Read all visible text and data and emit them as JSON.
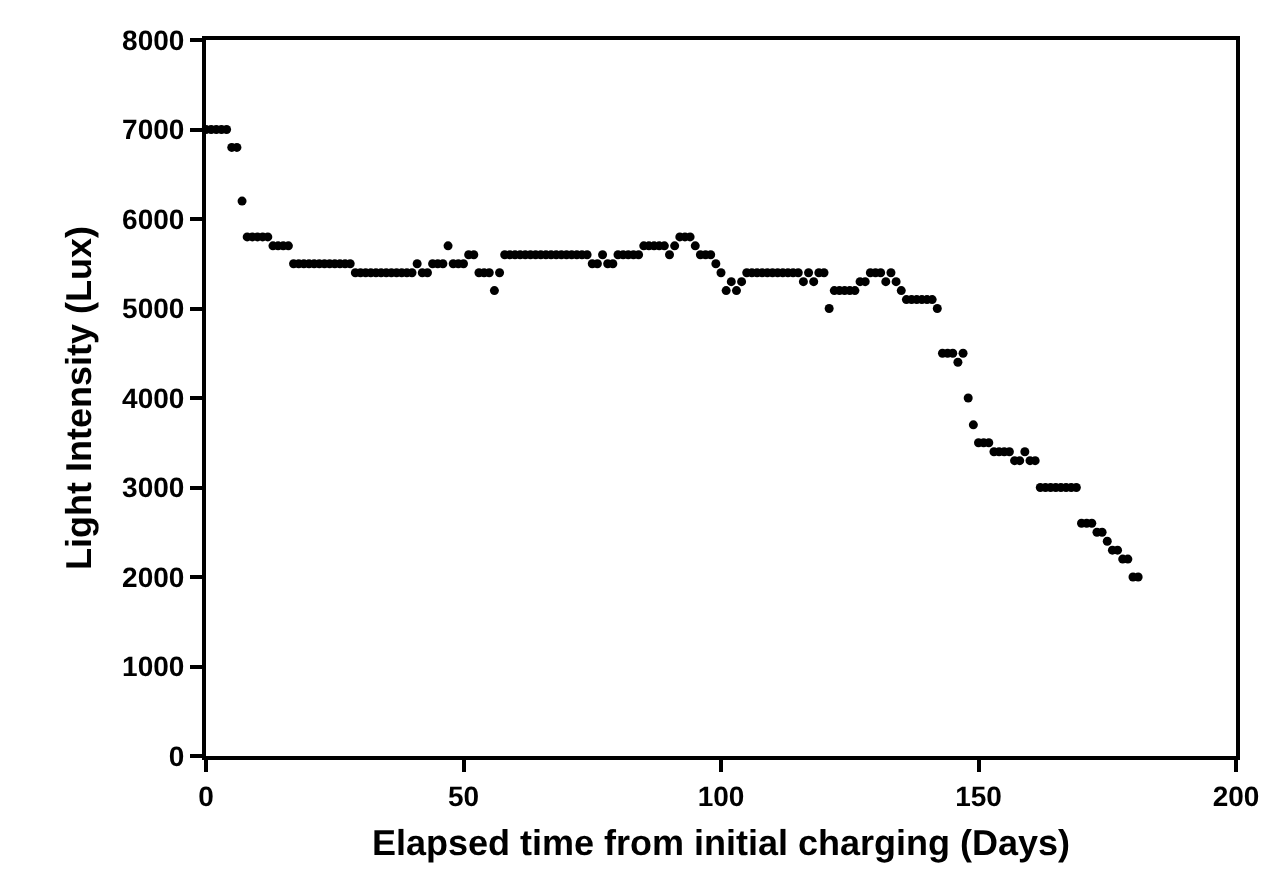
{
  "chart_data": {
    "type": "scatter",
    "xlabel": "Elapsed time from initial charging (Days)",
    "ylabel": "Light Intensity (Lux)",
    "xlim": [
      0,
      200
    ],
    "xticks": [
      0,
      50,
      100,
      150,
      200
    ],
    "ylim": [
      0,
      8000
    ],
    "yticks": [
      0,
      1000,
      2000,
      3000,
      4000,
      5000,
      6000,
      7000,
      8000
    ],
    "grid": false,
    "marker": "circle",
    "x": [
      0,
      1,
      2,
      3,
      4,
      5,
      6,
      7,
      8,
      9,
      10,
      11,
      12,
      13,
      14,
      15,
      16,
      17,
      18,
      19,
      20,
      21,
      22,
      23,
      24,
      25,
      26,
      27,
      28,
      29,
      30,
      31,
      32,
      33,
      34,
      35,
      36,
      37,
      38,
      39,
      40,
      41,
      42,
      43,
      44,
      45,
      46,
      47,
      48,
      49,
      50,
      51,
      52,
      53,
      54,
      55,
      56,
      57,
      58,
      59,
      60,
      61,
      62,
      63,
      64,
      65,
      66,
      67,
      68,
      69,
      70,
      71,
      72,
      73,
      74,
      75,
      76,
      77,
      78,
      79,
      80,
      81,
      82,
      83,
      84,
      85,
      86,
      87,
      88,
      89,
      90,
      91,
      92,
      93,
      94,
      95,
      96,
      97,
      98,
      99,
      100,
      101,
      102,
      103,
      104,
      105,
      106,
      107,
      108,
      109,
      110,
      111,
      112,
      113,
      114,
      115,
      116,
      117,
      118,
      119,
      120,
      121,
      122,
      123,
      124,
      125,
      126,
      127,
      128,
      129,
      130,
      131,
      132,
      133,
      134,
      135,
      136,
      137,
      138,
      139,
      140,
      141,
      142,
      143,
      144,
      145,
      146,
      147,
      148,
      149,
      150,
      151,
      152,
      153,
      154,
      155,
      156,
      157,
      158,
      159,
      160,
      161,
      162,
      163,
      164,
      165,
      166,
      167,
      168,
      169,
      170,
      171,
      172,
      173,
      174,
      175,
      176,
      177,
      178,
      179,
      180,
      181
    ],
    "series": [
      {
        "color": "#000000",
        "values": [
          7000,
          7000,
          7000,
          7000,
          7000,
          6800,
          6800,
          6200,
          5800,
          5800,
          5800,
          5800,
          5800,
          5700,
          5700,
          5700,
          5700,
          5500,
          5500,
          5500,
          5500,
          5500,
          5500,
          5500,
          5500,
          5500,
          5500,
          5500,
          5500,
          5400,
          5400,
          5400,
          5400,
          5400,
          5400,
          5400,
          5400,
          5400,
          5400,
          5400,
          5400,
          5500,
          5400,
          5400,
          5500,
          5500,
          5500,
          5700,
          5500,
          5500,
          5500,
          5600,
          5600,
          5400,
          5400,
          5400,
          5200,
          5400,
          5600,
          5600,
          5600,
          5600,
          5600,
          5600,
          5600,
          5600,
          5600,
          5600,
          5600,
          5600,
          5600,
          5600,
          5600,
          5600,
          5600,
          5500,
          5500,
          5600,
          5500,
          5500,
          5600,
          5600,
          5600,
          5600,
          5600,
          5700,
          5700,
          5700,
          5700,
          5700,
          5600,
          5700,
          5800,
          5800,
          5800,
          5700,
          5600,
          5600,
          5600,
          5500,
          5400,
          5200,
          5300,
          5200,
          5300,
          5400,
          5400,
          5400,
          5400,
          5400,
          5400,
          5400,
          5400,
          5400,
          5400,
          5400,
          5300,
          5400,
          5300,
          5400,
          5400,
          5000,
          5200,
          5200,
          5200,
          5200,
          5200,
          5300,
          5300,
          5400,
          5400,
          5400,
          5300,
          5400,
          5300,
          5200,
          5100,
          5100,
          5100,
          5100,
          5100,
          5100,
          5000,
          4500,
          4500,
          4500,
          4400,
          4500,
          4000,
          3700,
          3500,
          3500,
          3500,
          3400,
          3400,
          3400,
          3400,
          3300,
          3300,
          3400,
          3300,
          3300,
          3000,
          3000,
          3000,
          3000,
          3000,
          3000,
          3000,
          3000,
          2600,
          2600,
          2600,
          2500,
          2500,
          2400,
          2300,
          2300,
          2200,
          2200,
          2000,
          2000
        ]
      }
    ]
  }
}
